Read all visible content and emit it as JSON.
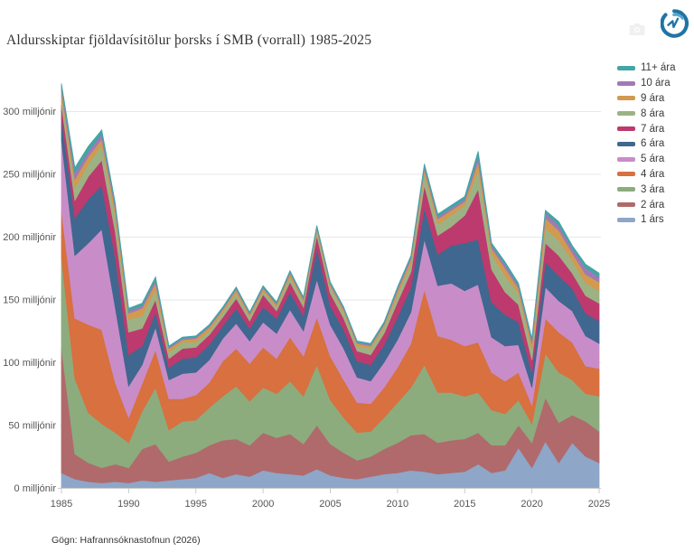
{
  "title": "Aldursskiptar fjöldavísitölur þorsks í SMB (vorrall) 1985-2025",
  "source": "Gögn: Hafrannsóknastofnun (2026)",
  "icons": {
    "logo": "hafro-logo",
    "modebar_camera": "camera-icon"
  },
  "colors": {
    "background": "#ffffff",
    "gridline": "#e7e7e7",
    "axis_line": "#c9c9c9",
    "tick_label": "#555555",
    "title_text": "#333333",
    "logo_dark_blue": "#1f74a4",
    "logo_light_blue": "#5aa7c9"
  },
  "chart_data": {
    "type": "area",
    "stacked": true,
    "title": "Aldursskiptar fjöldavísitölur þorsks í SMB (vorrall) 1985-2025",
    "xlabel": "",
    "ylabel": "milljónir",
    "grid": true,
    "legend_position": "right",
    "ylim": [
      0,
      325
    ],
    "yticks": [
      0,
      50,
      100,
      150,
      200,
      250,
      300
    ],
    "ytick_labels": [
      "0 milljónir",
      "50 milljónir",
      "100 milljónir",
      "150 milljónir",
      "200 milljónir",
      "250 milljónir",
      "300 milljónir"
    ],
    "xticks": [
      1985,
      1990,
      1995,
      2000,
      2005,
      2010,
      2015,
      2020,
      2025
    ],
    "x": [
      1985,
      1986,
      1987,
      1988,
      1989,
      1990,
      1991,
      1992,
      1993,
      1994,
      1995,
      1996,
      1997,
      1998,
      1999,
      2000,
      2001,
      2002,
      2003,
      2004,
      2005,
      2006,
      2007,
      2008,
      2009,
      2010,
      2011,
      2012,
      2013,
      2014,
      2015,
      2016,
      2017,
      2018,
      2019,
      2020,
      2021,
      2022,
      2023,
      2024,
      2025
    ],
    "series_note": "values in millions, listed bottom-to-top of the stack",
    "series": [
      {
        "name": "1 árs",
        "color": "#8ea6c8",
        "values": [
          12,
          7,
          5,
          4,
          5,
          4,
          6,
          5,
          6,
          7,
          8,
          12,
          8,
          11,
          9,
          14,
          12,
          11,
          10,
          15,
          10,
          8,
          7,
          9,
          11,
          12,
          14,
          13,
          11,
          12,
          13,
          19,
          12,
          14,
          32,
          16,
          37,
          20,
          36,
          25,
          20
        ]
      },
      {
        "name": "2 ára",
        "color": "#b06a6b",
        "values": [
          100,
          20,
          15,
          12,
          14,
          12,
          25,
          30,
          15,
          18,
          20,
          22,
          30,
          28,
          25,
          30,
          28,
          32,
          25,
          35,
          25,
          20,
          15,
          16,
          20,
          24,
          28,
          30,
          25,
          26,
          26,
          25,
          22,
          20,
          18,
          20,
          35,
          32,
          22,
          28,
          25
        ]
      },
      {
        "name": "3 ára",
        "color": "#8cac7e",
        "values": [
          72,
          60,
          40,
          35,
          25,
          20,
          30,
          45,
          25,
          28,
          26,
          30,
          35,
          42,
          35,
          36,
          35,
          42,
          38,
          48,
          35,
          28,
          22,
          20,
          25,
          32,
          38,
          55,
          40,
          38,
          34,
          32,
          28,
          25,
          20,
          15,
          35,
          40,
          28,
          22,
          28
        ]
      },
      {
        "name": "4 ára",
        "color": "#d8703f",
        "values": [
          37,
          48,
          70,
          75,
          40,
          20,
          22,
          30,
          25,
          18,
          20,
          20,
          28,
          30,
          30,
          32,
          28,
          35,
          32,
          38,
          35,
          30,
          24,
          22,
          24,
          28,
          35,
          60,
          45,
          42,
          40,
          40,
          30,
          26,
          22,
          15,
          28,
          32,
          30,
          22,
          22
        ]
      },
      {
        "name": "5 ára",
        "color": "#c88dc8",
        "values": [
          56,
          50,
          65,
          80,
          60,
          25,
          15,
          18,
          15,
          20,
          18,
          18,
          18,
          20,
          18,
          20,
          20,
          22,
          20,
          30,
          25,
          25,
          20,
          18,
          20,
          22,
          25,
          40,
          40,
          45,
          44,
          46,
          28,
          28,
          22,
          14,
          25,
          25,
          25,
          24,
          20
        ]
      },
      {
        "name": "6 ára",
        "color": "#40678f",
        "values": [
          18,
          30,
          35,
          35,
          40,
          25,
          15,
          12,
          10,
          12,
          12,
          12,
          10,
          12,
          10,
          12,
          12,
          14,
          12,
          25,
          15,
          15,
          13,
          13,
          14,
          18,
          20,
          25,
          25,
          30,
          38,
          36,
          28,
          25,
          18,
          12,
          20,
          20,
          18,
          18,
          18
        ]
      },
      {
        "name": "7 ára",
        "color": "#bd3a6e",
        "values": [
          10,
          14,
          18,
          20,
          20,
          18,
          14,
          10,
          7,
          8,
          8,
          8,
          7,
          8,
          6,
          10,
          6,
          8,
          7,
          10,
          10,
          9,
          8,
          8,
          9,
          12,
          12,
          18,
          15,
          15,
          22,
          40,
          26,
          18,
          14,
          10,
          15,
          16,
          12,
          14,
          14
        ]
      },
      {
        "name": "8 ára",
        "color": "#9db284",
        "values": [
          7,
          10,
          10,
          12,
          12,
          10,
          10,
          8,
          5,
          5,
          4,
          3,
          4,
          4,
          3,
          3,
          3,
          4,
          4,
          4,
          5,
          5,
          4,
          5,
          5,
          6,
          7,
          9,
          9,
          9,
          8,
          15,
          12,
          13,
          9,
          8,
          12,
          12,
          10,
          10,
          10
        ]
      },
      {
        "name": "9 ára",
        "color": "#d19a4f",
        "values": [
          5,
          7,
          6,
          5,
          6,
          5,
          6,
          5,
          3,
          2,
          3,
          3,
          2,
          3,
          2,
          2,
          2,
          3,
          2,
          2,
          2,
          2,
          2,
          2,
          2,
          3,
          3,
          4,
          4,
          4,
          3,
          7,
          5,
          6,
          4,
          5,
          8,
          8,
          6,
          7,
          7
        ]
      },
      {
        "name": "10 ára",
        "color": "#a07ab5",
        "values": [
          3,
          5,
          4,
          4,
          3,
          2,
          2,
          3,
          1,
          1,
          1,
          1,
          1,
          1,
          1,
          1,
          1,
          1,
          1,
          1,
          1,
          1,
          1,
          1,
          1,
          2,
          2,
          2,
          2,
          2,
          2,
          4,
          2,
          3,
          2,
          2,
          4,
          4,
          4,
          5,
          4
        ]
      },
      {
        "name": "11+ ára",
        "color": "#43a5a4",
        "values": [
          2,
          4,
          4,
          3,
          2,
          2,
          2,
          2,
          1,
          1,
          1,
          1,
          1,
          1,
          1,
          1,
          1,
          1,
          1,
          1,
          1,
          1,
          1,
          1,
          1,
          1,
          1,
          2,
          2,
          2,
          2,
          4,
          2,
          2,
          2,
          2,
          2,
          3,
          2,
          3,
          3
        ]
      }
    ],
    "legend_order_top_to_bottom": [
      "11+ ára",
      "10 ára",
      "9 ára",
      "8 ára",
      "7 ára",
      "6 ára",
      "5 ára",
      "4 ára",
      "3 ára",
      "2 ára",
      "1 árs"
    ]
  }
}
